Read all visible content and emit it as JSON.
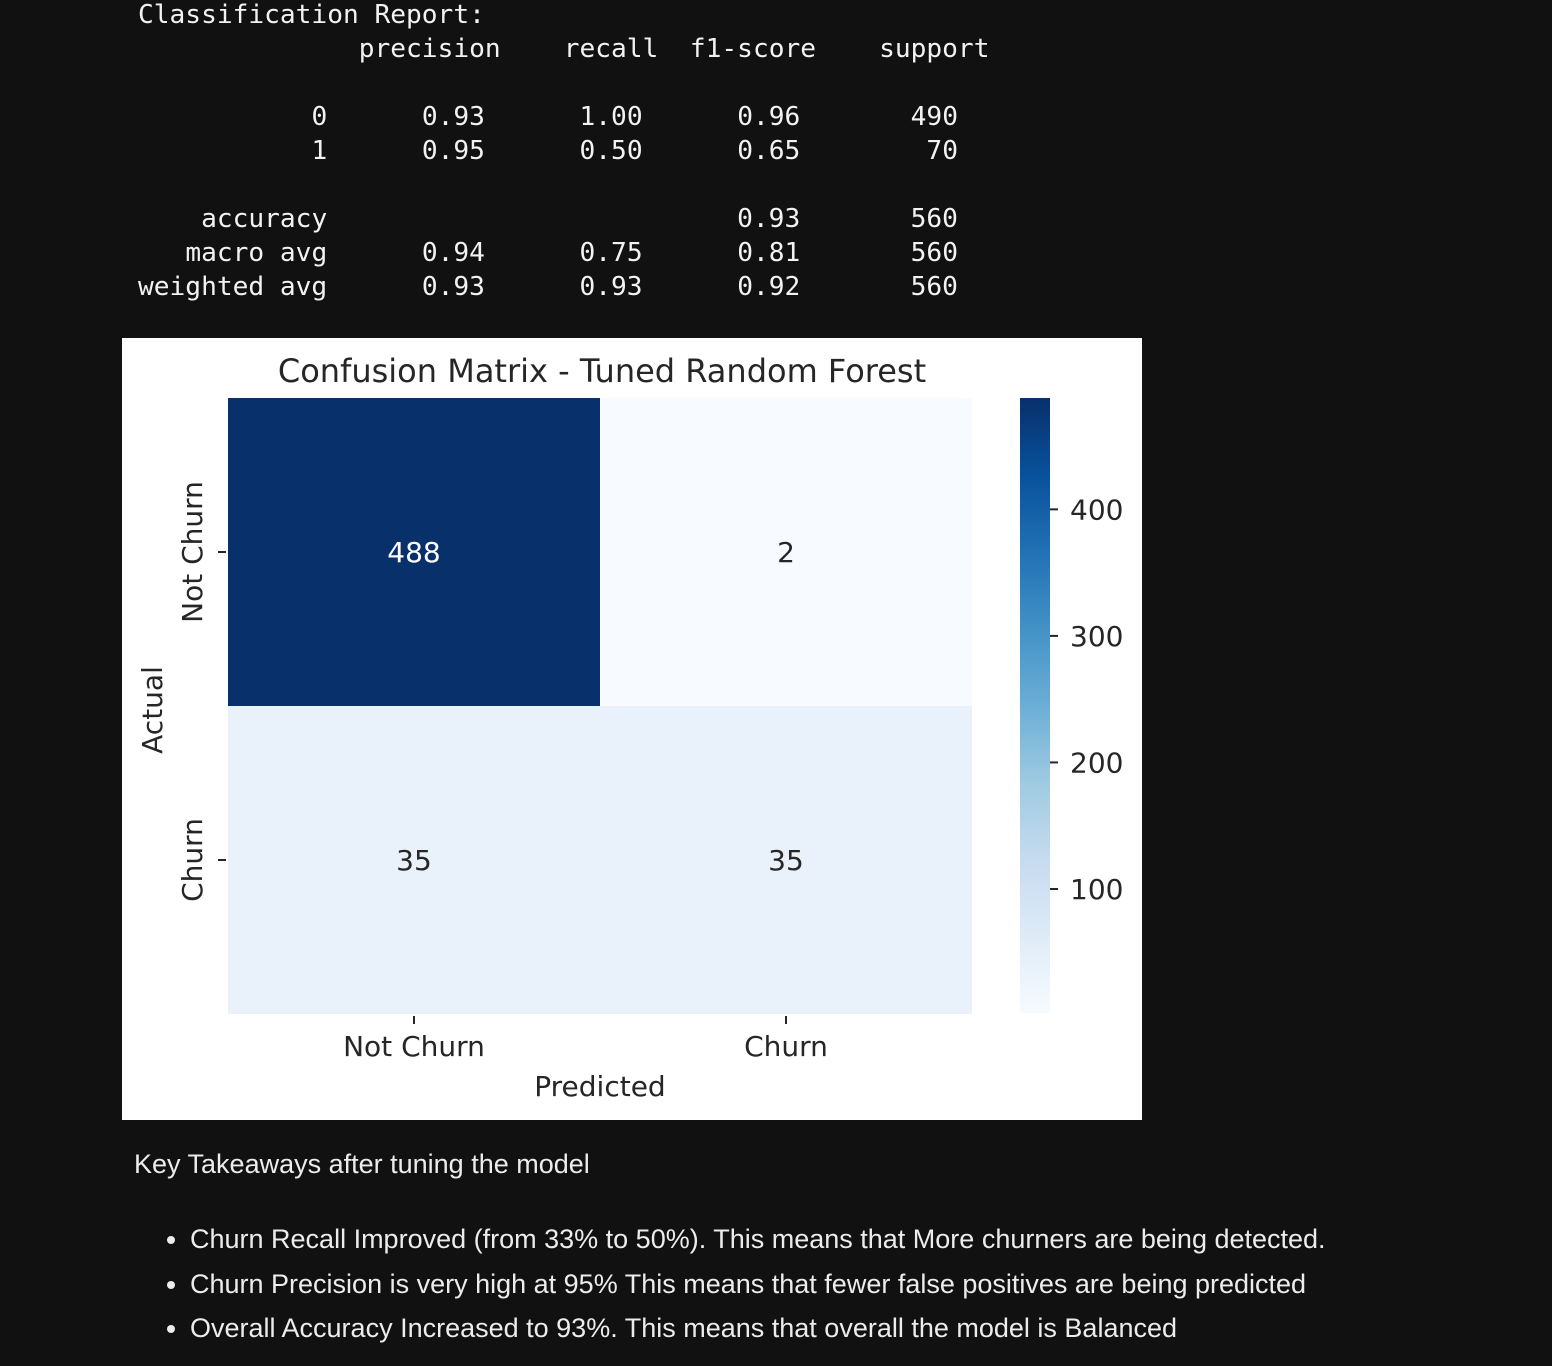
{
  "report": {
    "title": "Classification Report:",
    "header": [
      "precision",
      "recall",
      "f1-score",
      "support"
    ],
    "rows": [
      {
        "label": "0",
        "precision": "0.93",
        "recall": "1.00",
        "f1": "0.96",
        "support": "490"
      },
      {
        "label": "1",
        "precision": "0.95",
        "recall": "0.50",
        "f1": "0.65",
        "support": "70"
      }
    ],
    "summary": [
      {
        "label": "accuracy",
        "precision": "",
        "recall": "",
        "f1": "0.93",
        "support": "560"
      },
      {
        "label": "macro avg",
        "precision": "0.94",
        "recall": "0.75",
        "f1": "0.81",
        "support": "560"
      },
      {
        "label": "weighted avg",
        "precision": "0.93",
        "recall": "0.93",
        "f1": "0.92",
        "support": "560"
      }
    ]
  },
  "chart_data": {
    "type": "heatmap",
    "title": "Confusion Matrix - Tuned Random Forest",
    "xlabel": "Predicted",
    "ylabel": "Actual",
    "x_categories": [
      "Not Churn",
      "Churn"
    ],
    "y_categories": [
      "Not Churn",
      "Churn"
    ],
    "values": [
      [
        488,
        2
      ],
      [
        35,
        35
      ]
    ],
    "colormap": "Blues",
    "colorbar": {
      "range": [
        2,
        488
      ],
      "ticks": [
        100,
        200,
        300,
        400
      ],
      "placement": "right"
    },
    "colors": {
      "low": "#f7fbff",
      "high": "#08306b"
    }
  },
  "takeaways": {
    "heading": "Key Takeaways after tuning the model",
    "items": [
      "Churn Recall Improved (from 33% to 50%). This means that More churners are being detected.",
      "Churn Precision is very high at 95% This means that fewer false positives are being predicted",
      "Overall Accuracy Increased to 93%. This means that overall the model is Balanced"
    ]
  }
}
